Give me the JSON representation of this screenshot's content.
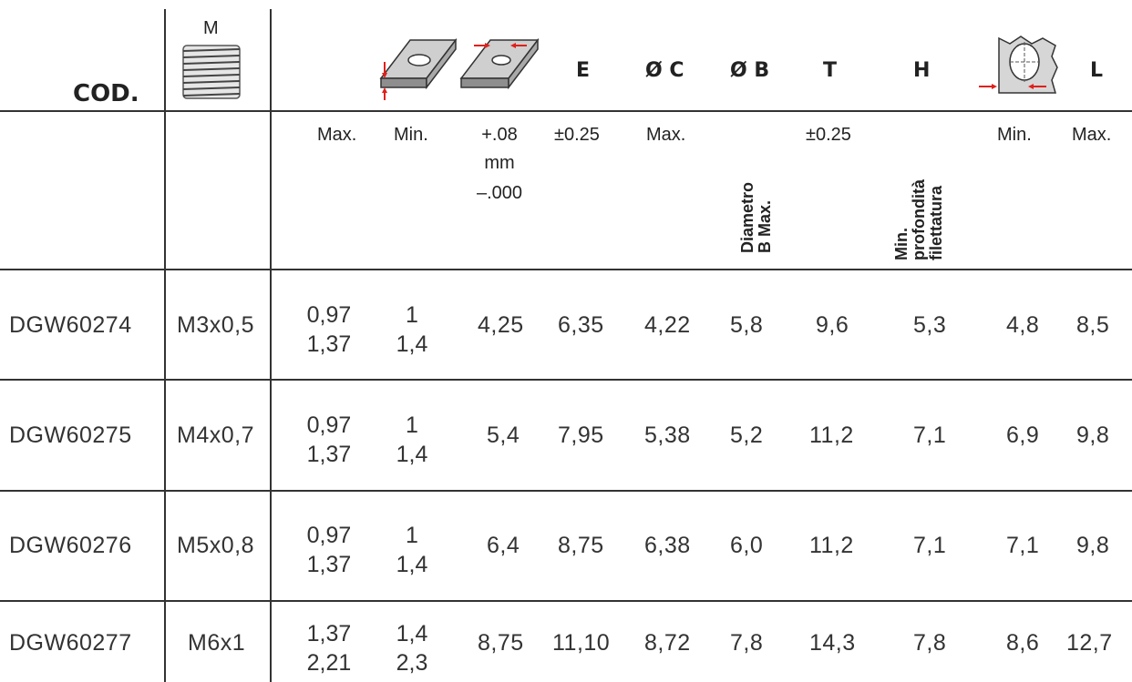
{
  "header": {
    "cod": "COD.",
    "m": "M",
    "e": "E",
    "oc": "Ø C",
    "ob": "Ø B",
    "t": "T",
    "h": "H",
    "l": "L"
  },
  "subheader": {
    "max1": "Max.",
    "min1": "Min.",
    "tol_plus": "+.08",
    "tol_unit": "mm",
    "tol_minus": "–.000",
    "e_tol": "±0.25",
    "oc_max": "Max.",
    "ob_label_1": "Diametro",
    "ob_label_2": "B Max.",
    "t_tol": "±0.25",
    "h_label_1": "Min.",
    "h_label_2": "profondità",
    "h_label_3": "filettatura",
    "l_min": "Min.",
    "l_max": "Max."
  },
  "rows": [
    {
      "cod": "DGW60274",
      "m": "M3x0,5",
      "max_a": "0,97",
      "max_b": "1,37",
      "min_a": "1",
      "min_b": "1,4",
      "tol": "4,25",
      "e": "6,35",
      "oc": "4,22",
      "ob": "5,8",
      "t": "9,6",
      "h": "5,3",
      "l_min": "4,8",
      "l_max": "8,5"
    },
    {
      "cod": "DGW60275",
      "m": "M4x0,7",
      "max_a": "0,97",
      "max_b": "1,37",
      "min_a": "1",
      "min_b": "1,4",
      "tol": "5,4",
      "e": "7,95",
      "oc": "5,38",
      "ob": "5,2",
      "t": "11,2",
      "h": "7,1",
      "l_min": "6,9",
      "l_max": "9,8"
    },
    {
      "cod": "DGW60276",
      "m": "M5x0,8",
      "max_a": "0,97",
      "max_b": "1,37",
      "min_a": "1",
      "min_b": "1,4",
      "tol": "6,4",
      "e": "8,75",
      "oc": "6,38",
      "ob": "6,0",
      "t": "11,2",
      "h": "7,1",
      "l_min": "7,1",
      "l_max": "9,8"
    },
    {
      "cod": "DGW60277",
      "m": "M6x1",
      "max_a": "1,37",
      "max_b": "2,21",
      "min_a": "1,4",
      "min_b": "2,3",
      "tol": "8,75",
      "e": "11,10",
      "oc": "8,72",
      "ob": "7,8",
      "t": "14,3",
      "h": "7,8",
      "l_min": "8,6",
      "l_max": "12,7"
    }
  ],
  "colors": {
    "arrow": "#e0201b",
    "line": "#333333",
    "text": "#222222"
  },
  "icons": [
    "thread-icon",
    "plate-thickness-icon",
    "plate-hole-icon",
    "hole-section-icon"
  ]
}
